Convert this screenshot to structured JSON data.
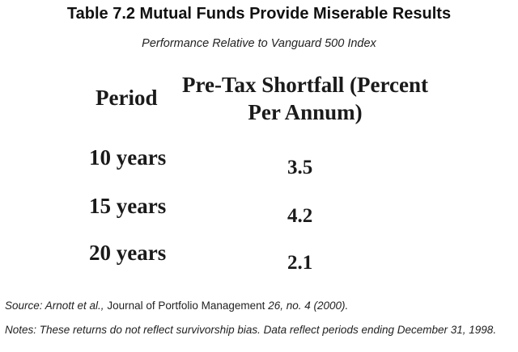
{
  "title": "Table 7.2 Mutual Funds Provide Miserable Results",
  "subtitle": "Performance Relative to Vanguard 500 Index",
  "table": {
    "headers": {
      "period": "Period",
      "shortfall_line1": "Pre-Tax Shortfall (Percent",
      "shortfall_line2": "Per Annum)"
    },
    "rows": [
      {
        "period": "10 years",
        "value": "3.5"
      },
      {
        "period": "15 years",
        "value": "4.2"
      },
      {
        "period": "20 years",
        "value": "2.1"
      }
    ]
  },
  "source": {
    "prefix": "Source: Arnott et al., ",
    "journal": "Journal of Portfolio Management",
    "suffix": " 26, no. 4 (2000)."
  },
  "notes": "Notes: These returns do not reflect survivorship bias. Data reflect periods ending December 31, 1998."
}
